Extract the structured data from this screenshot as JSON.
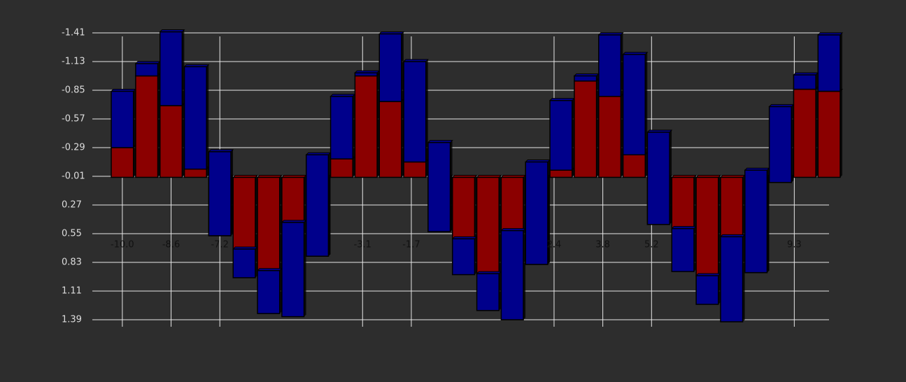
{
  "chart_data": {
    "type": "bar3d",
    "x": [
      -10.0,
      -9.3,
      -8.6,
      -7.9,
      -7.2,
      -6.5,
      -5.8,
      -5.1,
      -4.4,
      -3.7,
      -3.0,
      -2.3,
      -1.6,
      -0.9,
      -0.2,
      0.5,
      1.2,
      1.9,
      2.6,
      3.3,
      4.0,
      4.7,
      5.4,
      6.1,
      6.8,
      7.5,
      8.2,
      8.9,
      9.6,
      10.3
    ],
    "series": [
      {
        "color": "#8b0000",
        "values": [
          -0.29,
          -0.99,
          -0.7,
          -0.08,
          0.57,
          0.7,
          0.91,
          0.44,
          0.77,
          -0.18,
          -0.99,
          -0.74,
          -0.15,
          0.53,
          0.6,
          0.94,
          0.52,
          0.85,
          -0.07,
          -0.94,
          -0.79,
          -0.22,
          0.46,
          0.5,
          0.96,
          0.58,
          0.93,
          0.05,
          -0.86,
          -0.84
        ]
      },
      {
        "color": "#00008b",
        "values": [
          -0.55,
          -0.12,
          -0.72,
          -1.0,
          -0.82,
          0.28,
          0.42,
          0.92,
          -0.99,
          -0.61,
          -0.03,
          -0.66,
          -0.98,
          -0.87,
          0.35,
          0.36,
          0.87,
          -1.0,
          -0.68,
          -0.05,
          -0.6,
          -0.98,
          -0.9,
          0.42,
          0.28,
          0.83,
          -1.0,
          -0.74,
          -0.14,
          -0.55
        ]
      }
    ],
    "xlim": [
      -10.5,
      10.7
    ],
    "xticks": [
      {
        "value": -10,
        "label": "-10.0"
      },
      -8.6,
      -7.2,
      -3.1,
      -1.7,
      2.4,
      3.8,
      5.2,
      9.3
    ],
    "ylim": [
      1.39,
      -1.41
    ],
    "yticks": [
      -1.41,
      -1.13,
      -0.85,
      -0.57,
      -0.29,
      -0.01,
      0.27,
      0.55,
      0.83,
      1.11,
      1.39
    ],
    "grid": true
  }
}
